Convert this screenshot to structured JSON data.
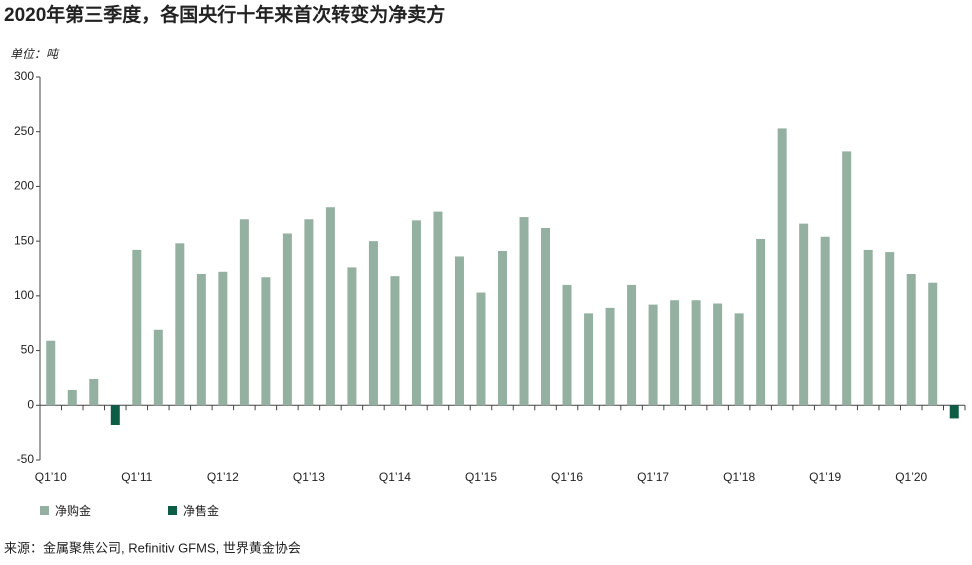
{
  "chart_data": {
    "type": "bar",
    "title": "2020年第三季度，各国央行十年来首次转变为净卖方",
    "y_label": "单位：吨",
    "source": "来源：金属聚焦公司, Refinitiv GFMS, 世界黄金协会",
    "categories": [
      "Q1’10",
      null,
      null,
      null,
      "Q1’11",
      null,
      null,
      null,
      "Q1’12",
      null,
      null,
      null,
      "Q1’13",
      null,
      null,
      null,
      "Q1’14",
      null,
      null,
      null,
      "Q1’15",
      null,
      null,
      null,
      "Q1’16",
      null,
      null,
      null,
      "Q1’17",
      null,
      null,
      null,
      "Q1’18",
      null,
      null,
      null,
      "Q1’19",
      null,
      null,
      null,
      "Q1’20",
      null,
      null
    ],
    "series": [
      {
        "name": "净购金",
        "color": "#94b0a0",
        "values": [
          59,
          14,
          24,
          null,
          142,
          69,
          148,
          120,
          122,
          170,
          117,
          157,
          170,
          181,
          126,
          150,
          118,
          169,
          177,
          136,
          103,
          141,
          172,
          162,
          110,
          84,
          89,
          110,
          92,
          96,
          96,
          93,
          84,
          152,
          253,
          166,
          154,
          232,
          142,
          140,
          120,
          112,
          null
        ]
      },
      {
        "name": "净售金",
        "color": "#0d5c45",
        "values": [
          null,
          null,
          null,
          -18,
          null,
          null,
          null,
          null,
          null,
          null,
          null,
          null,
          null,
          null,
          null,
          null,
          null,
          null,
          null,
          null,
          null,
          null,
          null,
          null,
          null,
          null,
          null,
          null,
          null,
          null,
          null,
          null,
          null,
          null,
          null,
          null,
          null,
          null,
          null,
          null,
          null,
          null,
          -12
        ]
      }
    ],
    "ylim": [
      -50,
      300
    ],
    "yticks": [
      -50,
      0,
      50,
      100,
      150,
      200,
      250,
      300
    ],
    "grid": false
  }
}
